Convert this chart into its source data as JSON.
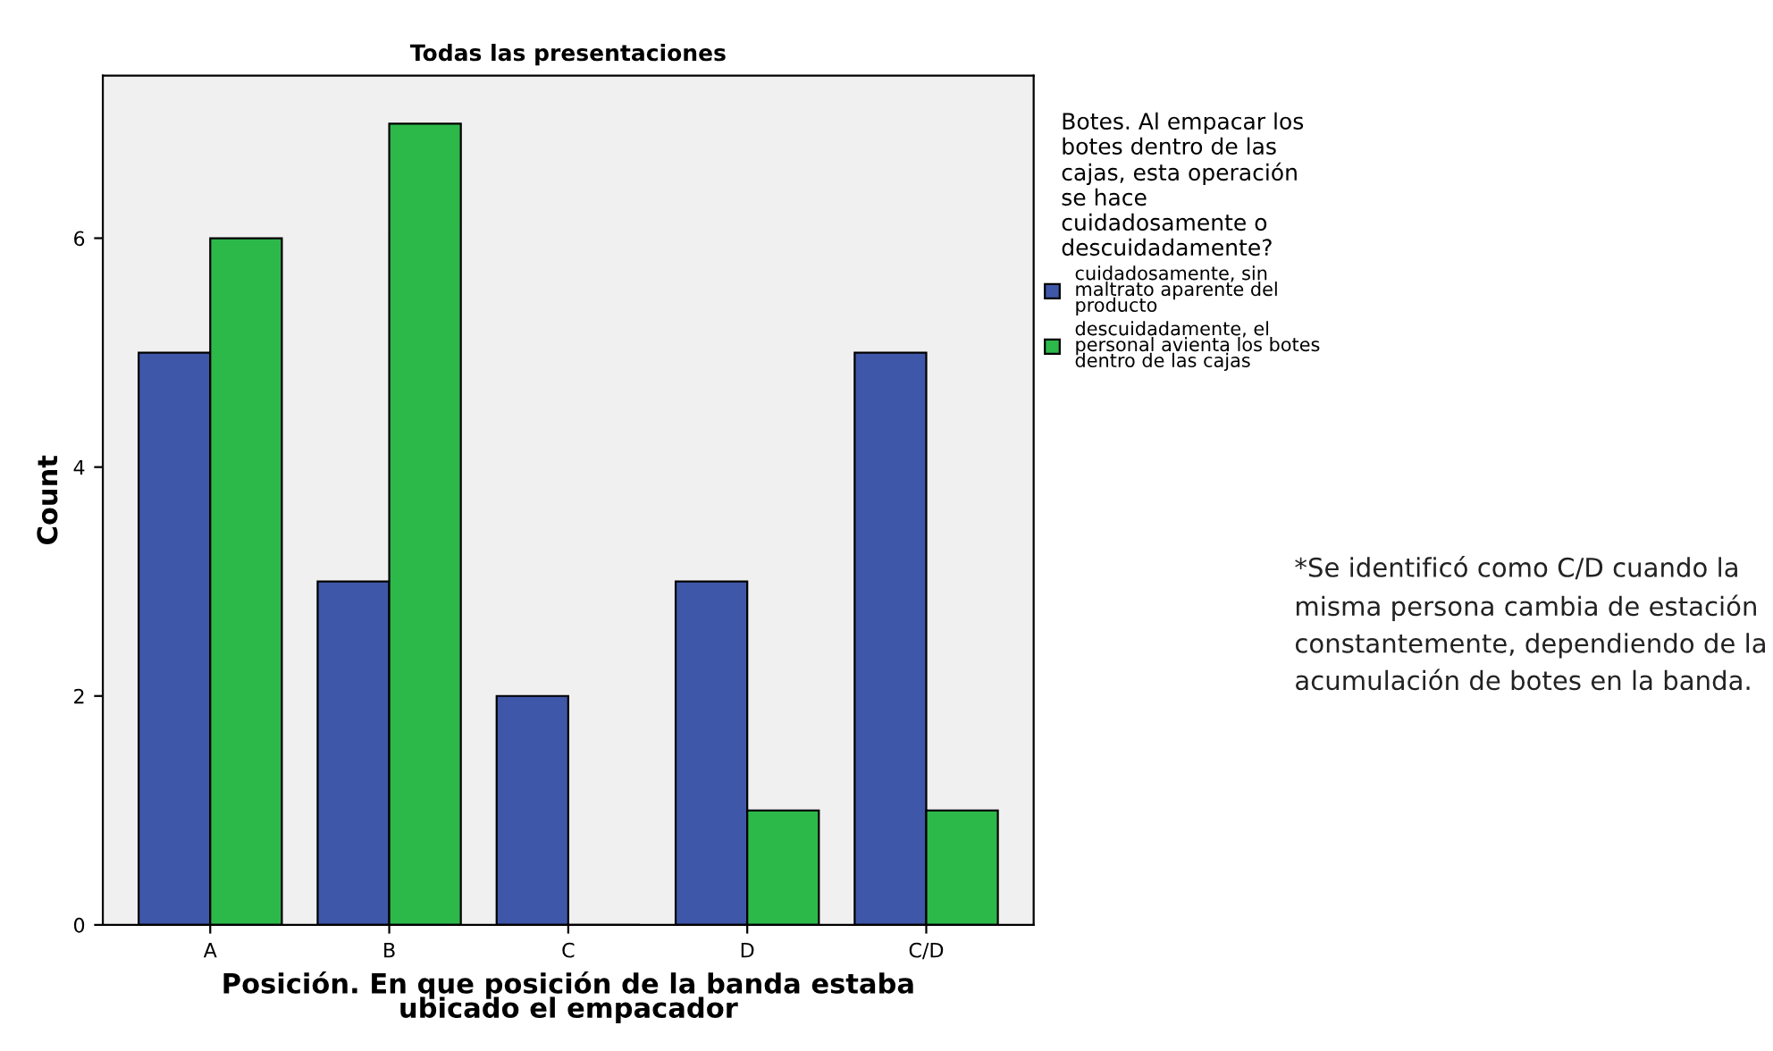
{
  "chart_data": {
    "type": "bar",
    "title": "Todas las presentaciones",
    "xlabel": "Posición. En que posición de la banda estaba\nubicado el empacador",
    "ylabel": "Count",
    "legend_title": "Botes. Al empacar los\nbotes dentro de las\ncajas, esta operación\nse hace\ncuidadosamente o\ndescuidadamente?",
    "categories": [
      "A",
      "B",
      "C",
      "D",
      "C/D"
    ],
    "series": [
      {
        "name": "cuidadosamente, sin\nmaltrato aparente del\nproducto",
        "color": "#3f57a8",
        "values": [
          5,
          3,
          2,
          3,
          5
        ]
      },
      {
        "name": "descuidadamente, el\npersonal avienta los botes\ndentro de las cajas",
        "color": "#2db84a",
        "values": [
          6,
          7,
          0,
          1,
          1
        ]
      }
    ],
    "ylim": [
      0,
      7.42
    ],
    "yticks": [
      0,
      2,
      4,
      6
    ],
    "grid": false,
    "legend": "top right",
    "annotations": [
      "*Se identificó como C/D cuando la misma persona cambia de estación constantemente, dependiendo de la acumulación de botes en la banda."
    ]
  }
}
